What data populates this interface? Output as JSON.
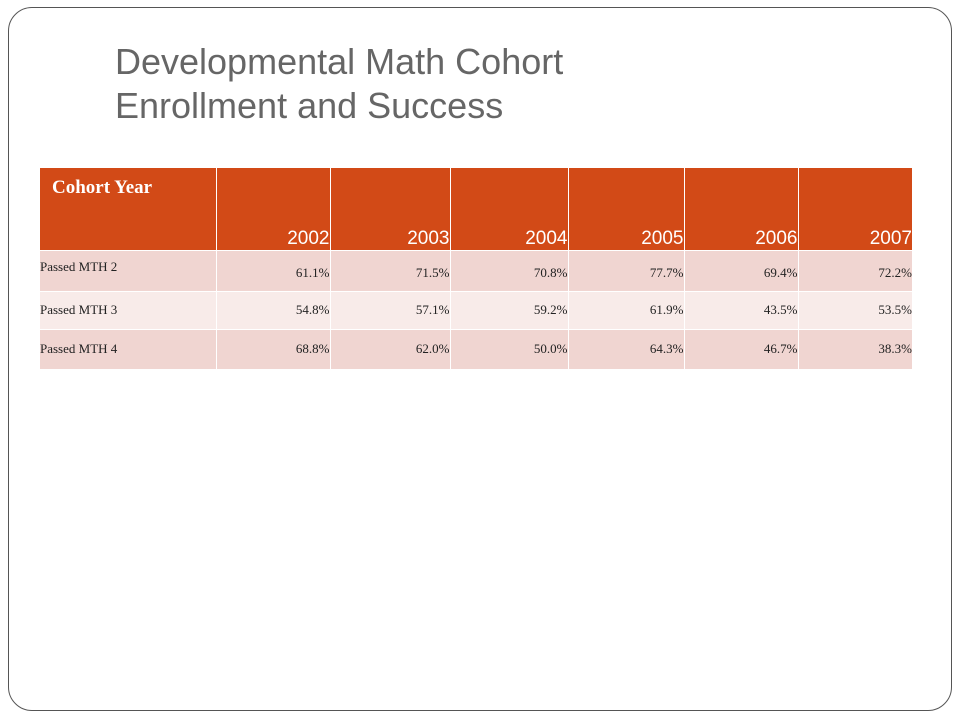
{
  "title": {
    "line1": "Developmental Math Cohort",
    "line2": "Enrollment and Success"
  },
  "table": {
    "corner_header": "Cohort Year",
    "years": [
      "2002",
      "2003",
      "2004",
      "2005",
      "2006",
      "2007"
    ],
    "rows": [
      {
        "label": "Passed MTH 2",
        "values": [
          "61.1%",
          "71.5%",
          "70.8%",
          "77.7%",
          "69.4%",
          "72.2%"
        ]
      },
      {
        "label": "Passed MTH 3",
        "values": [
          "54.8%",
          "57.1%",
          "59.2%",
          "61.9%",
          "43.5%",
          "53.5%"
        ]
      },
      {
        "label": "Passed MTH 4",
        "values": [
          "68.8%",
          "62.0%",
          "50.0%",
          "64.3%",
          "46.7%",
          "38.3%"
        ]
      }
    ]
  },
  "colors": {
    "header_fill": "#D24A17",
    "row_dark": "#F0D5D1",
    "row_light": "#F8EBE9",
    "title_text": "#666666"
  }
}
